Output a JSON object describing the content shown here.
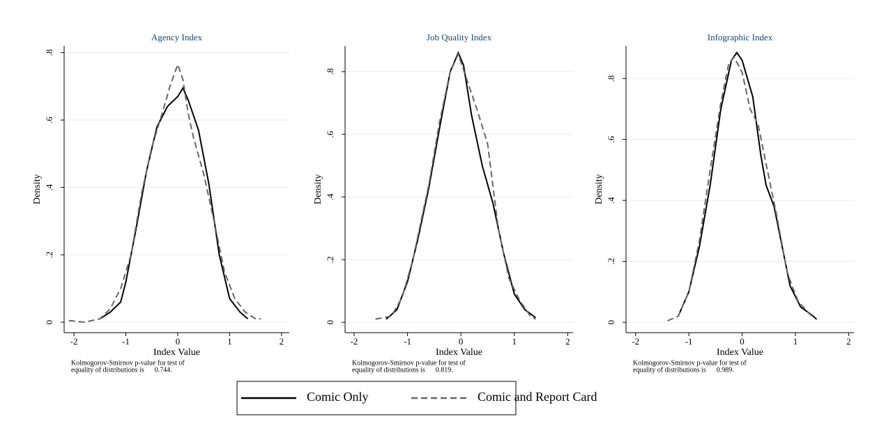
{
  "chart_data": [
    {
      "type": "line",
      "title": "Agency Index",
      "x_label": "Index Value",
      "y_label": "Density",
      "note": [
        "Kolmogorov-Smirnov p-value for test of",
        "equality of distributions is      0.744."
      ],
      "xlim": [
        -2.19,
        2.15
      ],
      "ylim": [
        -0.031,
        0.82
      ],
      "xticks": [
        -2,
        -1,
        0,
        1,
        2
      ],
      "yticks": [
        0,
        {
          "value": 0.2,
          "label": ".2"
        },
        {
          "value": 0.4,
          "label": ".4"
        },
        {
          "value": 0.6,
          "label": ".6"
        },
        {
          "value": 0.8,
          "label": ".8"
        }
      ],
      "grid": true,
      "series": [
        {
          "name": "Comic Only",
          "color": "#000000",
          "style": "solid",
          "x": [
            -1.5,
            -1.3,
            -1.1,
            -1.0,
            -0.8,
            -0.6,
            -0.4,
            -0.2,
            0,
            0.1,
            0.2,
            0.4,
            0.6,
            0.8,
            1.0,
            1.2,
            1.35
          ],
          "values": [
            0.01,
            0.03,
            0.06,
            0.12,
            0.28,
            0.45,
            0.58,
            0.64,
            0.67,
            0.695,
            0.66,
            0.57,
            0.41,
            0.2,
            0.07,
            0.03,
            0.01
          ]
        },
        {
          "name": "Comic and Report Card",
          "color": "#666666",
          "style": "dashed",
          "x": [
            -2.1,
            -1.8,
            -1.5,
            -1.3,
            -1.1,
            -0.9,
            -0.7,
            -0.5,
            -0.3,
            -0.15,
            0,
            0.1,
            0.2,
            0.3,
            0.5,
            0.7,
            0.9,
            1.1,
            1.3,
            1.5,
            1.6
          ],
          "values": [
            0.005,
            0.0,
            0.01,
            0.04,
            0.1,
            0.2,
            0.38,
            0.52,
            0.62,
            0.7,
            0.765,
            0.72,
            0.62,
            0.55,
            0.44,
            0.3,
            0.15,
            0.07,
            0.03,
            0.01,
            0.01
          ]
        }
      ]
    },
    {
      "type": "line",
      "title": "Job Quality Index",
      "x_label": "Index Value",
      "y_label": "Density",
      "note": [
        "Kolmogorov-Smirnov p-value for test of",
        "equality of distributions is      0.819."
      ],
      "xlim": [
        -2.17,
        2.1
      ],
      "ylim": [
        -0.033,
        0.882
      ],
      "xticks": [
        -2,
        -1,
        0,
        1,
        2
      ],
      "yticks": [
        0,
        {
          "value": 0.2,
          "label": ".2"
        },
        {
          "value": 0.4,
          "label": ".4"
        },
        {
          "value": 0.6,
          "label": ".6"
        },
        {
          "value": 0.8,
          "label": ".8"
        }
      ],
      "grid": true,
      "series": [
        {
          "name": "Comic Only",
          "color": "#000000",
          "style": "solid",
          "x": [
            -1.4,
            -1.2,
            -1.0,
            -0.8,
            -0.6,
            -0.4,
            -0.2,
            -0.05,
            0.05,
            0.2,
            0.4,
            0.6,
            0.8,
            1.0,
            1.2,
            1.4
          ],
          "values": [
            0.01,
            0.04,
            0.13,
            0.27,
            0.43,
            0.62,
            0.8,
            0.86,
            0.82,
            0.66,
            0.5,
            0.38,
            0.22,
            0.09,
            0.04,
            0.015
          ]
        },
        {
          "name": "Comic and Report Card",
          "color": "#666666",
          "style": "dashed",
          "x": [
            -1.6,
            -1.3,
            -1.1,
            -0.9,
            -0.6,
            -0.4,
            -0.2,
            -0.05,
            0.1,
            0.3,
            0.5,
            0.7,
            0.9,
            1.1,
            1.3,
            1.4
          ],
          "values": [
            0.01,
            0.02,
            0.08,
            0.2,
            0.44,
            0.64,
            0.8,
            0.855,
            0.78,
            0.68,
            0.57,
            0.3,
            0.14,
            0.07,
            0.02,
            0.01
          ]
        }
      ]
    },
    {
      "type": "line",
      "title": "Infographic Index",
      "x_label": "Index Value",
      "y_label": "Density",
      "note": [
        "Kolmogorov-Smirnov p-value for test of",
        "equality of distributions is      0.989."
      ],
      "xlim": [
        -2.18,
        2.1
      ],
      "ylim": [
        -0.034,
        0.907
      ],
      "xticks": [
        -2,
        -1,
        0,
        1,
        2
      ],
      "yticks": [
        0,
        {
          "value": 0.2,
          "label": ".2"
        },
        {
          "value": 0.4,
          "label": ".4"
        },
        {
          "value": 0.6,
          "label": ".6"
        },
        {
          "value": 0.8,
          "label": ".8"
        }
      ],
      "grid": true,
      "series": [
        {
          "name": "Comic Only",
          "color": "#000000",
          "style": "solid",
          "x": [
            -1.2,
            -1.0,
            -0.8,
            -0.6,
            -0.4,
            -0.2,
            -0.1,
            0,
            0.2,
            0.35,
            0.45,
            0.6,
            0.75,
            0.9,
            1.1,
            1.3,
            1.4
          ],
          "values": [
            0.02,
            0.1,
            0.25,
            0.45,
            0.7,
            0.86,
            0.885,
            0.86,
            0.74,
            0.55,
            0.45,
            0.38,
            0.25,
            0.12,
            0.05,
            0.025,
            0.01
          ]
        },
        {
          "name": "Comic and Report Card",
          "color": "#666666",
          "style": "dashed",
          "x": [
            -1.4,
            -1.2,
            -1.0,
            -0.8,
            -0.6,
            -0.4,
            -0.25,
            -0.15,
            0,
            0.15,
            0.3,
            0.45,
            0.65,
            0.85,
            1.05,
            1.25,
            1.35
          ],
          "values": [
            0.005,
            0.02,
            0.1,
            0.27,
            0.5,
            0.72,
            0.85,
            0.87,
            0.82,
            0.7,
            0.65,
            0.52,
            0.35,
            0.16,
            0.07,
            0.03,
            0.015
          ]
        }
      ]
    }
  ]
}
